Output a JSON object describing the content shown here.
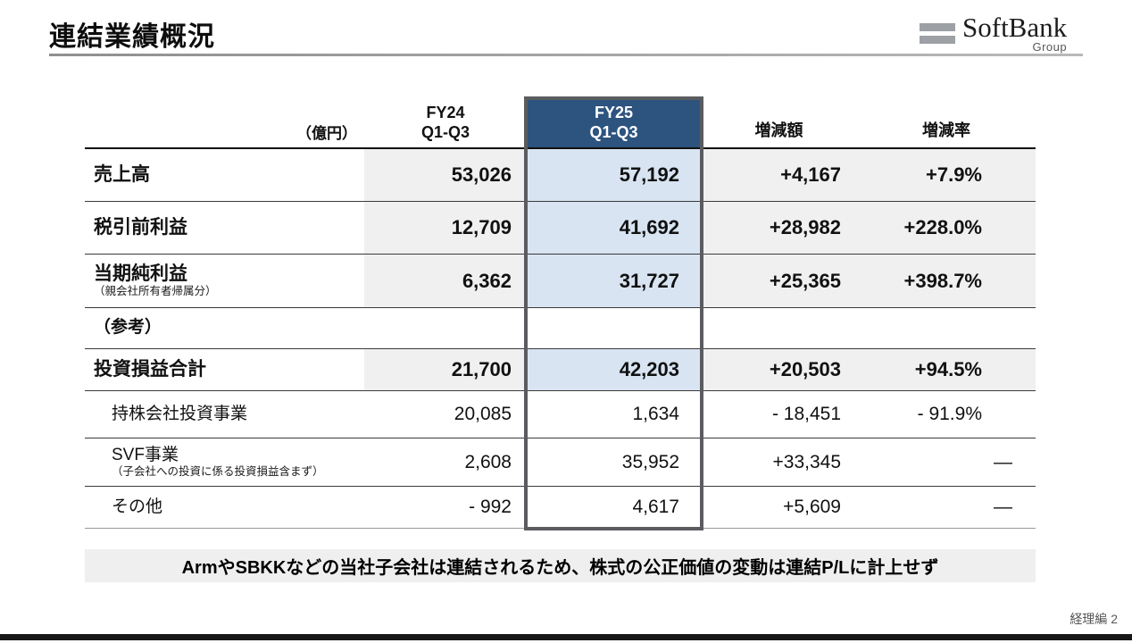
{
  "slide": {
    "title": "連結業績概況",
    "note": "ArmやSBKKなどの当社子会社は連結されるため、株式の公正価値の変動は連結P/Lに計上せず",
    "footer_label": "経理編 2"
  },
  "logo": {
    "name": "SoftBank",
    "group": "Group"
  },
  "colors": {
    "fy25_header_blue": "#2d537f",
    "fy25_highlight_blue": "#d8e4f2",
    "band_gray": "#f0f0f0",
    "frame_gray": "#5a5c5f",
    "note_bg": "#efefef"
  },
  "table": {
    "unit_label": "（億円）",
    "header": {
      "fy24_line1": "FY24",
      "fy24_line2": "Q1-Q3",
      "fy25_line1": "FY25",
      "fy25_line2": "Q1-Q3",
      "delta": "増減額",
      "rate": "増減率"
    },
    "rows": [
      {
        "label": "売上高",
        "fy24": "53,026",
        "fy25": "57,192",
        "delta": "+4,167",
        "rate": "+7.9%"
      },
      {
        "label": "税引前利益",
        "fy24": "12,709",
        "fy25": "41,692",
        "delta": "+28,982",
        "rate": "+228.0%"
      },
      {
        "label": "当期純利益",
        "sub": "（親会社所有者帰属分）",
        "fy24": "6,362",
        "fy25": "31,727",
        "delta": "+25,365",
        "rate": "+398.7%"
      },
      {
        "label": "（参考）",
        "fy24": "",
        "fy25": "",
        "delta": "",
        "rate": ""
      },
      {
        "label": "投資損益合計",
        "fy24": "21,700",
        "fy25": "42,203",
        "delta": "+20,503",
        "rate": "+94.5%"
      },
      {
        "label": "持株会社投資事業",
        "fy24": "20,085",
        "fy25": "1,634",
        "delta": "- 18,451",
        "rate": "- 91.9%"
      },
      {
        "label": "SVF事業",
        "sub": "（子会社への投資に係る投資損益含まず）",
        "fy24": "2,608",
        "fy25": "35,952",
        "delta": "+33,345",
        "rate": "—"
      },
      {
        "label": "その他",
        "fy24": "- 992",
        "fy25": "4,617",
        "delta": "+5,609",
        "rate": "—"
      }
    ]
  }
}
